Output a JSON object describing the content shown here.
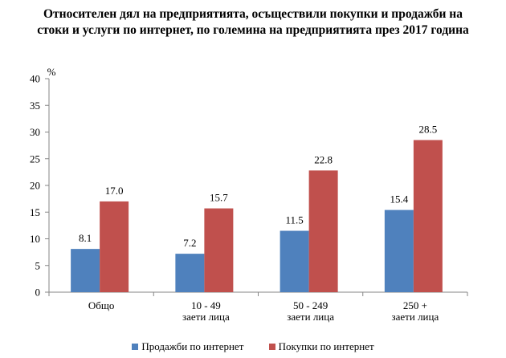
{
  "chart_data": {
    "type": "bar",
    "title": "Относителен дял на предприятията, осъществили покупки и продажби на стоки и услуги по интернет, по големина на предприятията през 2017 година",
    "title_lines": [
      "Относителен дял на предприятията, осъществили покупки и продажби на",
      "стоки и услуги по интернет, по големина на предприятията през 2017 година"
    ],
    "ylabel": "%",
    "xlabel": "",
    "ylim": [
      0,
      40
    ],
    "yticks": [
      0,
      5,
      10,
      15,
      20,
      25,
      30,
      35,
      40
    ],
    "grid": false,
    "legend_position": "bottom",
    "categories": [
      "Общо",
      "10 - 49 заети лица",
      "50 - 249 заети лица",
      "250 + заети лица"
    ],
    "category_lines": [
      [
        "Общо"
      ],
      [
        "10 - 49",
        "заети лица"
      ],
      [
        "50 - 249",
        "заети лица"
      ],
      [
        "250 +",
        "заети лица"
      ]
    ],
    "series": [
      {
        "name": "Продажби по интернет",
        "color": "#4f81bd",
        "values": [
          8.1,
          7.2,
          11.5,
          15.4
        ]
      },
      {
        "name": "Покупки по интернет",
        "color": "#c0504d",
        "values": [
          17.0,
          15.7,
          22.8,
          28.5
        ]
      }
    ]
  }
}
